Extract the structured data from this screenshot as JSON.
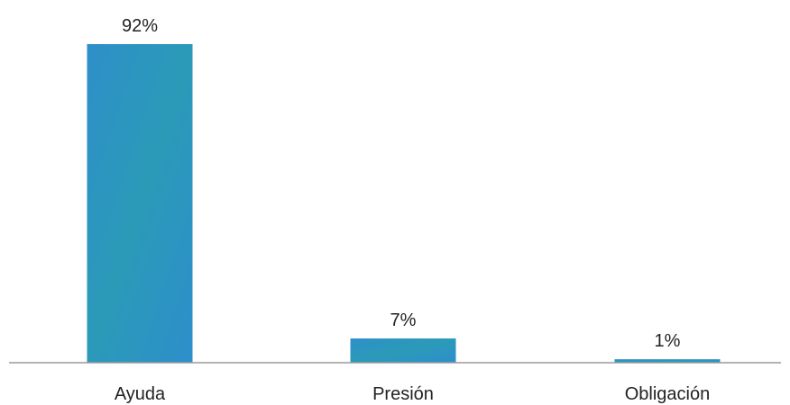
{
  "chart_data": {
    "type": "bar",
    "categories": [
      "Ayuda",
      "Presión",
      "Obligación"
    ],
    "values": [
      92,
      7,
      1
    ],
    "value_labels": [
      "92%",
      "7%",
      "1%"
    ],
    "ylim": [
      0,
      100
    ],
    "grid": false,
    "legend": "none",
    "bar_color": "#2a93c4",
    "axis_color": "#9a9a9a"
  }
}
